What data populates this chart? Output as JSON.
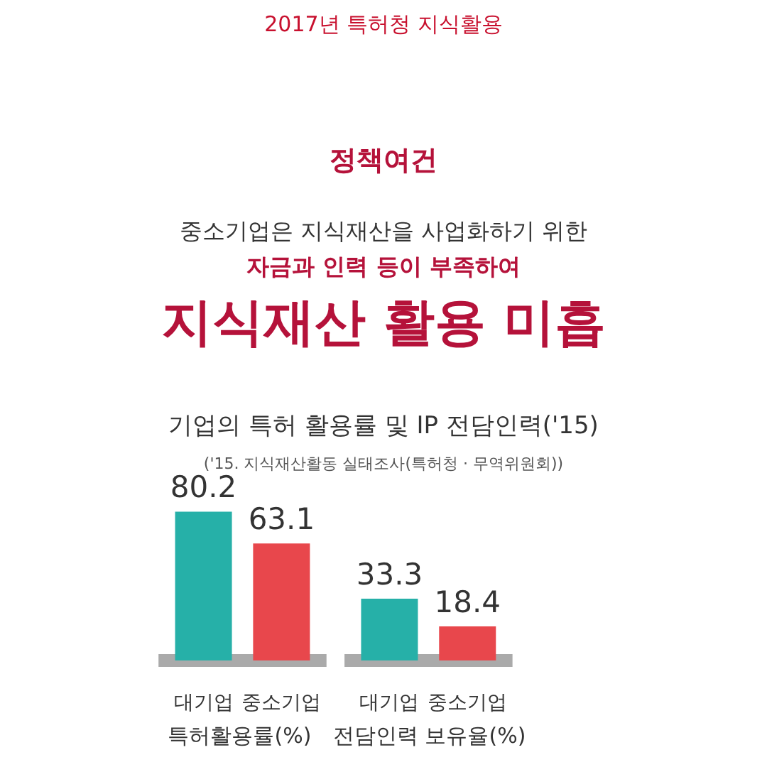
{
  "chart_data": {
    "type": "bar",
    "title": "기업의 특허 활용률 및 IP 전담인력('15)",
    "subtitle": "('15. 지식재산활동 실태조사(특허청 · 무역위원회))",
    "annotations": [
      "2017년 특허청 지식활용",
      "정책여건",
      "중소기업은 지식재산을 사업화하기 위한",
      "자금과 인력 등이 부족하여",
      "지식재산 활용 미흡",
      "특허활용률(%)",
      "전담인력 보유율(%)"
    ],
    "categories": [
      "대기업",
      "중소기업",
      "대기업",
      "중소기업"
    ],
    "values": [
      80.2,
      63.1,
      33.3,
      18.4
    ],
    "colors": [
      "#26b0a8",
      "#e8474c",
      "#26b0a8",
      "#e8474c"
    ],
    "data_labels": true
  }
}
